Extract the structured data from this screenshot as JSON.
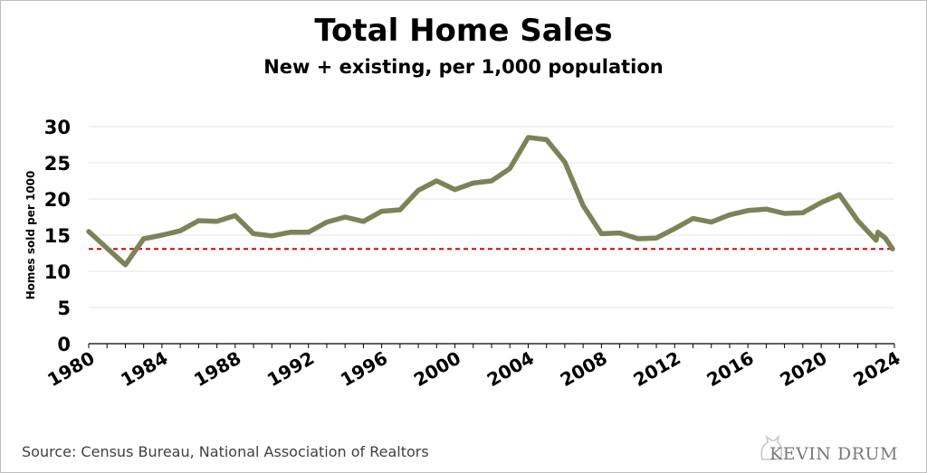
{
  "chart_data": {
    "type": "line",
    "title": "Total Home Sales",
    "subtitle": "New + existing, per 1,000 population",
    "ylabel": "Homes sold per 1000",
    "xlabel": "",
    "ylim": [
      0,
      30
    ],
    "yticks": [
      0,
      5,
      10,
      15,
      20,
      25,
      30
    ],
    "xlim": [
      1980,
      2024
    ],
    "xticks": [
      "1980",
      "1984",
      "1988",
      "1992",
      "1996",
      "2000",
      "2004",
      "2008",
      "2012",
      "2016",
      "2020",
      "2024"
    ],
    "grid": true,
    "legend": "none",
    "series": [
      {
        "color": "#7b8358",
        "x": [
          1980,
          1981,
          1982,
          1983,
          1984,
          1985,
          1986,
          1987,
          1988,
          1989,
          1990,
          1991,
          1992,
          1993,
          1994,
          1995,
          1996,
          1997,
          1998,
          1999,
          2000,
          2001,
          2002,
          2003,
          2004,
          2005,
          2006,
          2007,
          2008,
          2009,
          2010,
          2011,
          2012,
          2013,
          2014,
          2015,
          2016,
          2017,
          2018,
          2019,
          2020,
          2021,
          2022,
          2023,
          2023.1,
          2023.5,
          2023.9
        ],
        "y": [
          15.5,
          13.2,
          10.9,
          14.5,
          15.0,
          15.6,
          17.0,
          16.9,
          17.7,
          15.2,
          14.9,
          15.4,
          15.4,
          16.8,
          17.5,
          16.9,
          18.3,
          18.5,
          21.2,
          22.5,
          21.3,
          22.2,
          22.5,
          24.2,
          28.5,
          28.2,
          25.1,
          19.1,
          15.2,
          15.3,
          14.5,
          14.6,
          15.9,
          17.3,
          16.8,
          17.8,
          18.4,
          18.6,
          18.0,
          18.1,
          19.5,
          20.6,
          17.0,
          14.3,
          15.4,
          14.6,
          13.1
        ]
      }
    ],
    "reference_line": {
      "y": 13.1,
      "color": "#e00000",
      "style": "dashed"
    }
  },
  "footer": {
    "source": "Source: Census Bureau, National Association of Realtors",
    "brand": "KEVIN DRUM"
  },
  "colors": {
    "line": "#7b8358",
    "reference": "#e00000",
    "grid": "#e6e6e6",
    "axis": "#000000"
  }
}
